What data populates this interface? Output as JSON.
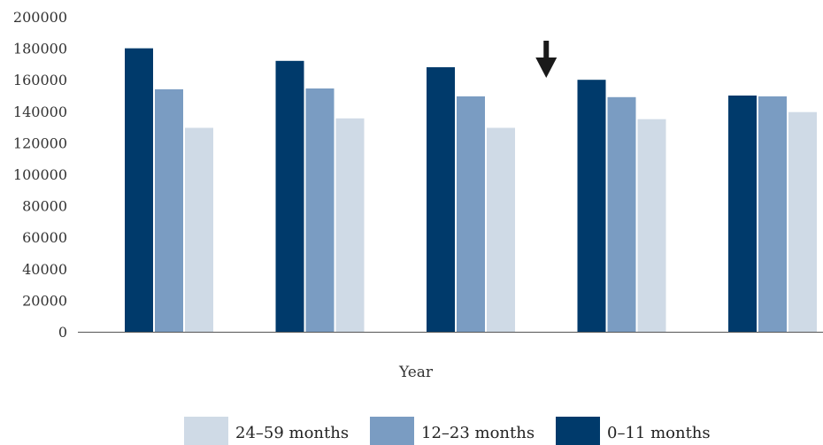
{
  "chart_data": {
    "type": "bar",
    "title": "",
    "xlabel": "Year",
    "ylabel": "",
    "ylim": [
      0,
      200000
    ],
    "yticks": [
      0,
      20000,
      40000,
      60000,
      80000,
      100000,
      120000,
      140000,
      160000,
      180000,
      200000
    ],
    "categories": [
      "",
      "",
      "",
      "",
      ""
    ],
    "series": [
      {
        "name": "0–11 months",
        "color": "#003a6b",
        "values": [
          180000,
          172000,
          168000,
          160000,
          150000
        ]
      },
      {
        "name": "12–23 months",
        "color": "#7a9cc2",
        "values": [
          154000,
          154500,
          149500,
          149000,
          149500
        ]
      },
      {
        "name": "24–59 months",
        "color": "#cfdae6",
        "values": [
          129500,
          135500,
          129500,
          135000,
          139500
        ]
      }
    ],
    "legend_order": [
      2,
      1,
      0
    ],
    "legend_position": "bottom",
    "grid": false,
    "annotation": {
      "type": "down-arrow",
      "between_categories": [
        2,
        3
      ],
      "color": "#1a1a1a"
    }
  }
}
